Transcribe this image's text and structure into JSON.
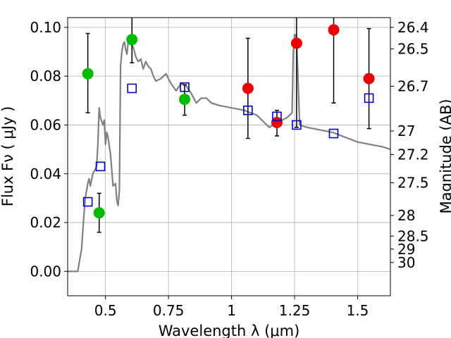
{
  "chart_data": {
    "type": "scatter",
    "title": "",
    "xlabel": "Wavelength  λ (μm)",
    "ylabel": "Flux  Fν  ( μJy )",
    "ylabel_right": "Magnitude (AB)",
    "xlim": [
      0.35,
      1.63
    ],
    "ylim": [
      -0.01,
      0.104
    ],
    "grid": true,
    "x_ticks": [
      {
        "value": 0.5,
        "label": "0.5"
      },
      {
        "value": 0.75,
        "label": "0.75"
      },
      {
        "value": 1.0,
        "label": "1"
      },
      {
        "value": 1.25,
        "label": "1.25"
      },
      {
        "value": 1.5,
        "label": "1.5"
      }
    ],
    "y_ticks": [
      {
        "value": 0.0,
        "label": "0.00"
      },
      {
        "value": 0.02,
        "label": "0.02"
      },
      {
        "value": 0.04,
        "label": "0.04"
      },
      {
        "value": 0.06,
        "label": "0.06"
      },
      {
        "value": 0.08,
        "label": "0.08"
      },
      {
        "value": 0.1,
        "label": "0.10"
      }
    ],
    "right_ticks": [
      {
        "mag": 26.4,
        "label": "26.4"
      },
      {
        "mag": 26.5,
        "label": "26.5"
      },
      {
        "mag": 26.7,
        "label": "26.7"
      },
      {
        "mag": 27.0,
        "label": "27"
      },
      {
        "mag": 27.2,
        "label": "27.2"
      },
      {
        "mag": 27.5,
        "label": "27.5"
      },
      {
        "mag": 28.0,
        "label": "28"
      },
      {
        "mag": 28.5,
        "label": "28.5"
      },
      {
        "mag": 29.0,
        "label": "29"
      },
      {
        "mag": 30.0,
        "label": "30"
      }
    ],
    "series": [
      {
        "name": "green-detections",
        "marker": "circle",
        "color": "#00bb00",
        "points": [
          {
            "x": 0.43,
            "y": 0.081,
            "err_lo": 0.016,
            "err_hi": 0.0165
          },
          {
            "x": 0.475,
            "y": 0.024,
            "err_lo": 0.008,
            "err_hi": 0.008
          },
          {
            "x": 0.605,
            "y": 0.095,
            "err_lo": 0.0095,
            "err_hi": 0.014
          },
          {
            "x": 0.814,
            "y": 0.0705,
            "err_lo": 0.0065,
            "err_hi": 0.006
          }
        ]
      },
      {
        "name": "red-detections",
        "marker": "circle",
        "color": "#ee0000",
        "points": [
          {
            "x": 1.065,
            "y": 0.075,
            "err_lo": 0.0205,
            "err_hi": 0.0205
          },
          {
            "x": 1.18,
            "y": 0.061,
            "err_lo": 0.0055,
            "err_hi": 0.005
          },
          {
            "x": 1.258,
            "y": 0.0935,
            "err_lo": 0.0345,
            "err_hi": 0.012
          },
          {
            "x": 1.405,
            "y": 0.099,
            "err_lo": 0.03,
            "err_hi": 0.008
          },
          {
            "x": 1.545,
            "y": 0.079,
            "err_lo": 0.0205,
            "err_hi": 0.0205
          }
        ]
      },
      {
        "name": "model-photometry",
        "marker": "square-open",
        "color": "#0000cc",
        "points": [
          {
            "x": 0.43,
            "y": 0.0285
          },
          {
            "x": 0.48,
            "y": 0.043
          },
          {
            "x": 0.605,
            "y": 0.075
          },
          {
            "x": 0.814,
            "y": 0.0755
          },
          {
            "x": 1.065,
            "y": 0.066
          },
          {
            "x": 1.18,
            "y": 0.0635
          },
          {
            "x": 1.258,
            "y": 0.06
          },
          {
            "x": 1.405,
            "y": 0.0565
          },
          {
            "x": 1.545,
            "y": 0.071
          }
        ]
      },
      {
        "name": "sed-model",
        "marker": "line",
        "color": "#808080",
        "x": [
          0.35,
          0.39,
          0.395,
          0.405,
          0.415,
          0.42,
          0.43,
          0.435,
          0.44,
          0.45,
          0.46,
          0.465,
          0.47,
          0.475,
          0.48,
          0.49,
          0.495,
          0.5,
          0.505,
          0.51,
          0.52,
          0.53,
          0.54,
          0.545,
          0.55,
          0.555,
          0.56,
          0.565,
          0.57,
          0.575,
          0.58,
          0.585,
          0.59,
          0.6,
          0.61,
          0.62,
          0.63,
          0.64,
          0.65,
          0.66,
          0.67,
          0.68,
          0.69,
          0.7,
          0.72,
          0.74,
          0.76,
          0.78,
          0.8,
          0.82,
          0.84,
          0.86,
          0.88,
          0.9,
          0.92,
          0.95,
          1.0,
          1.05,
          1.1,
          1.15,
          1.18,
          1.2,
          1.22,
          1.24,
          1.245,
          1.25,
          1.255,
          1.26,
          1.265,
          1.27,
          1.3,
          1.35,
          1.4,
          1.45,
          1.5,
          1.55,
          1.6,
          1.63
        ],
        "y": [
          0.0,
          0.0,
          0.003,
          0.009,
          0.024,
          0.03,
          0.036,
          0.038,
          0.035,
          0.04,
          0.042,
          0.043,
          0.052,
          0.067,
          0.063,
          0.06,
          0.062,
          0.052,
          0.057,
          0.055,
          0.048,
          0.035,
          0.036,
          0.029,
          0.027,
          0.033,
          0.084,
          0.09,
          0.093,
          0.094,
          0.091,
          0.089,
          0.094,
          0.093,
          0.092,
          0.088,
          0.086,
          0.087,
          0.083,
          0.086,
          0.084,
          0.083,
          0.08,
          0.078,
          0.079,
          0.081,
          0.077,
          0.074,
          0.077,
          0.076,
          0.073,
          0.069,
          0.071,
          0.071,
          0.069,
          0.068,
          0.067,
          0.066,
          0.064,
          0.059,
          0.061,
          0.062,
          0.063,
          0.065,
          0.09,
          0.097,
          0.097,
          0.09,
          0.075,
          0.06,
          0.059,
          0.058,
          0.057,
          0.055,
          0.053,
          0.052,
          0.051,
          0.05
        ]
      }
    ]
  }
}
